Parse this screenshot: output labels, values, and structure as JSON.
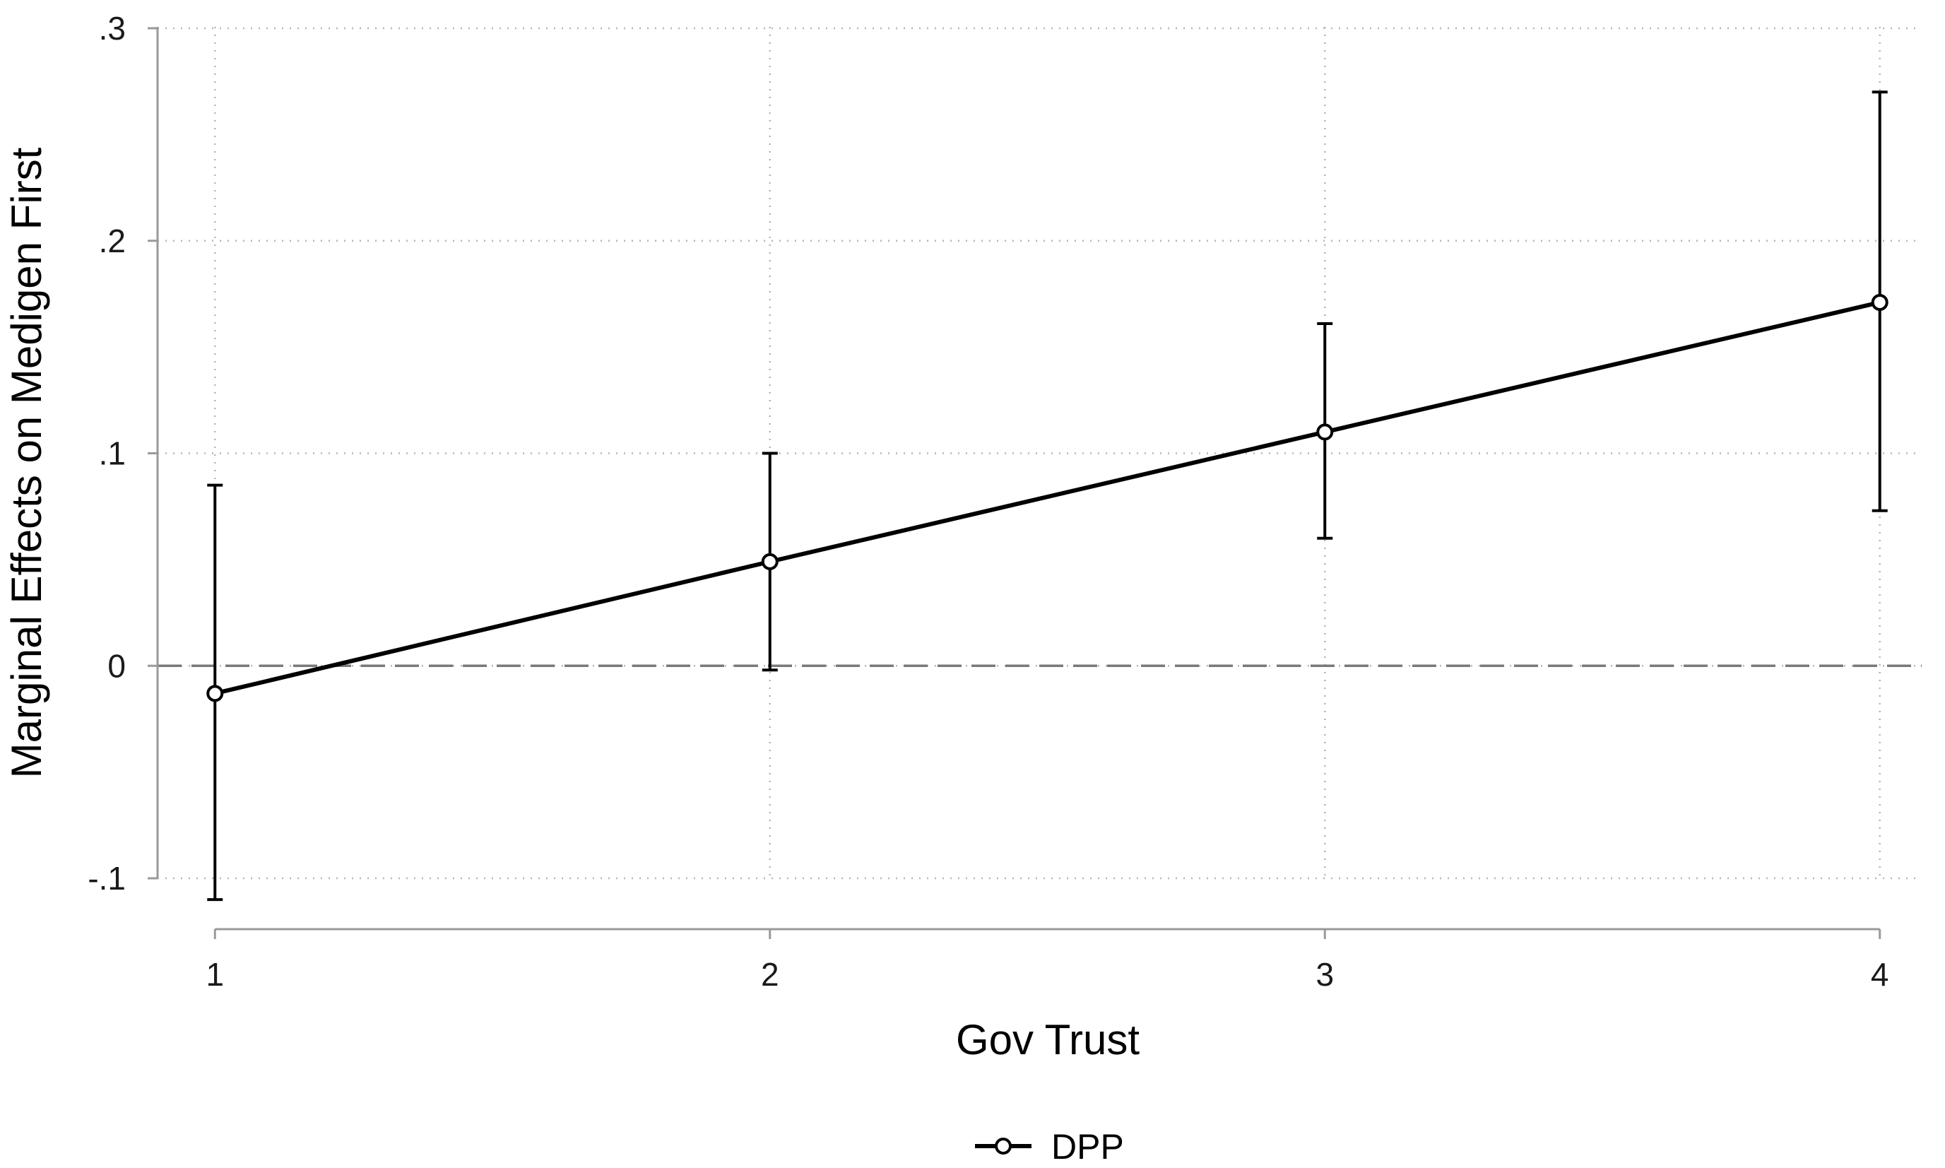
{
  "chart_data": {
    "type": "line",
    "xlabel": "Gov Trust",
    "ylabel": "Marginal Effects on Medigen First",
    "x": [
      1,
      2,
      3,
      4
    ],
    "x_tick_labels": [
      "1",
      "2",
      "3",
      "4"
    ],
    "xlim": [
      0.95,
      4.05
    ],
    "ylim": [
      -0.1,
      0.3
    ],
    "y_ticks": [
      -0.1,
      0,
      0.1,
      0.2,
      0.3
    ],
    "y_tick_labels": [
      "-.1",
      "0",
      ".1",
      ".2",
      ".3"
    ],
    "reference_line_y": 0,
    "grid": true,
    "legend_position": "bottom-center",
    "series": [
      {
        "name": "DPP",
        "values": [
          -0.013,
          0.049,
          0.11,
          0.171
        ],
        "ci_lower": [
          -0.11,
          -0.002,
          0.06,
          0.073
        ],
        "ci_upper": [
          0.085,
          0.1,
          0.161,
          0.27
        ],
        "color": "#000000",
        "marker": "hollow-circle"
      }
    ]
  }
}
